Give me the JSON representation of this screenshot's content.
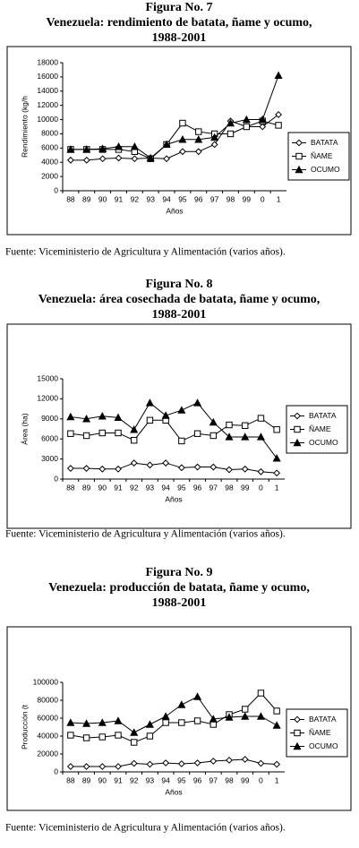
{
  "chart_data": [
    {
      "type": "line",
      "figure": "Figura No. 7",
      "title": "Venezuela: rendimiento de batata, ñame y ocumo,",
      "subtitle": "1988-2001",
      "x_label": "Años",
      "y_label": "Rendimiento (kg/h",
      "categories": [
        "88",
        "89",
        "90",
        "91",
        "92",
        "93",
        "94",
        "95",
        "96",
        "97",
        "98",
        "99",
        "0",
        "1"
      ],
      "ylim": [
        0,
        18000
      ],
      "yticks": [
        0,
        2000,
        4000,
        6000,
        8000,
        10000,
        12000,
        14000,
        16000,
        18000
      ],
      "series": [
        {
          "name": "BATATA",
          "color": "#000000",
          "marker": "diamond",
          "values": [
            4300,
            4300,
            4500,
            4600,
            4500,
            4600,
            4500,
            5500,
            5500,
            6500,
            9800,
            9000,
            9000,
            10700
          ]
        },
        {
          "name": "ÑAME",
          "color": "#000000",
          "marker": "square",
          "values": [
            5800,
            5800,
            5800,
            5800,
            5500,
            4500,
            6500,
            9500,
            8300,
            8000,
            8000,
            9000,
            9800,
            9200
          ]
        },
        {
          "name": "OCUMO",
          "color": "#000000",
          "marker": "triangle",
          "values": [
            5800,
            5800,
            5900,
            6200,
            6200,
            4600,
            6500,
            7200,
            7200,
            7500,
            9500,
            10000,
            10000,
            16200
          ]
        }
      ],
      "source": "Fuente: Viceministerio de Agricultura y Alimentación (varios años)."
    },
    {
      "type": "line",
      "figure": "Figura No. 8",
      "title": "Venezuela: área cosechada de batata, ñame y ocumo,",
      "subtitle": "1988-2001",
      "x_label": "Años",
      "y_label": "Área (ha)",
      "categories": [
        "88",
        "89",
        "90",
        "91",
        "92",
        "93",
        "94",
        "95",
        "96",
        "97",
        "98",
        "99",
        "0",
        "1"
      ],
      "ylim": [
        0,
        15000
      ],
      "yticks": [
        0,
        3000,
        6000,
        9000,
        12000,
        15000
      ],
      "series": [
        {
          "name": "BATATA",
          "color": "#000000",
          "marker": "diamond",
          "values": [
            1600,
            1600,
            1500,
            1500,
            2400,
            2100,
            2400,
            1700,
            1800,
            1800,
            1400,
            1500,
            1100,
            900
          ]
        },
        {
          "name": "ÑAME",
          "color": "#000000",
          "marker": "square",
          "values": [
            6800,
            6500,
            6900,
            6900,
            5800,
            8800,
            8800,
            5700,
            6800,
            6500,
            8100,
            8000,
            9100,
            7400
          ]
        },
        {
          "name": "OCUMO",
          "color": "#000000",
          "marker": "triangle",
          "values": [
            9300,
            9000,
            9400,
            9200,
            7400,
            11400,
            9500,
            10300,
            11400,
            8500,
            6300,
            6300,
            6300,
            3100
          ]
        }
      ],
      "source": "Fuente: Viceministerio de Agricultura y Alimentación (varios años)."
    },
    {
      "type": "line",
      "figure": "Figura No. 9",
      "title": "Venezuela: producción de batata, ñame y ocumo,",
      "subtitle": "1988-2001",
      "x_label": "Años",
      "y_label": "Producción (t",
      "categories": [
        "88",
        "89",
        "90",
        "91",
        "92",
        "93",
        "94",
        "95",
        "96",
        "97",
        "98",
        "99",
        "0",
        "1"
      ],
      "ylim": [
        0,
        100000
      ],
      "yticks": [
        0,
        20000,
        40000,
        60000,
        80000,
        100000
      ],
      "series": [
        {
          "name": "BATATA",
          "color": "#000000",
          "marker": "diamond",
          "values": [
            6000,
            6000,
            6000,
            6000,
            9500,
            8500,
            10000,
            9000,
            10000,
            12000,
            13000,
            14000,
            9500,
            8500
          ]
        },
        {
          "name": "ÑAME",
          "color": "#000000",
          "marker": "square",
          "values": [
            41000,
            38000,
            39000,
            41000,
            33000,
            40000,
            55000,
            55000,
            57000,
            53000,
            64000,
            70000,
            88000,
            68000
          ]
        },
        {
          "name": "OCUMO",
          "color": "#000000",
          "marker": "triangle",
          "values": [
            55000,
            54000,
            55000,
            57000,
            44000,
            53000,
            62000,
            75000,
            84000,
            59000,
            61000,
            62000,
            62000,
            52000
          ]
        }
      ],
      "source": "Fuente: Viceministerio de Agricultura y Alimentación (varios años)."
    }
  ]
}
